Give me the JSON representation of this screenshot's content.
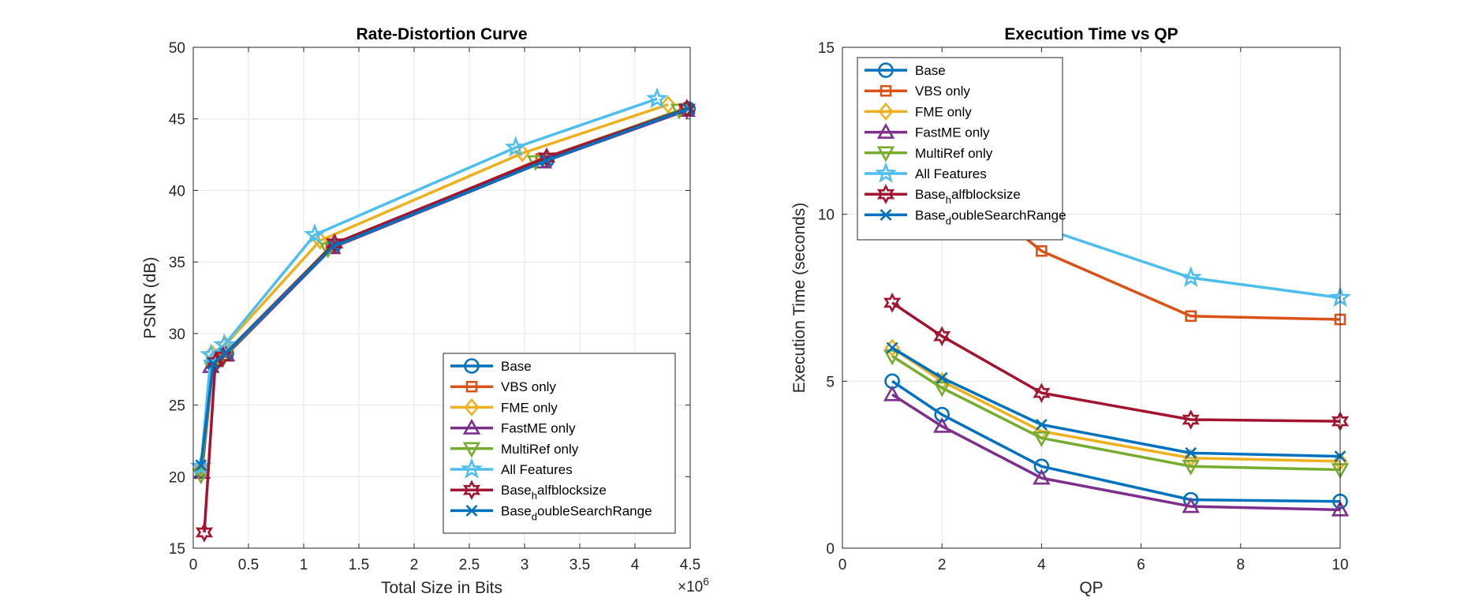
{
  "chart_data": [
    {
      "type": "line",
      "title": "Rate-Distortion Curve",
      "xlabel": "Total Size in Bits",
      "ylabel": "PSNR (dB)",
      "x_exponent_label": "×10",
      "x_exponent": "6",
      "x_scale": 1000000,
      "xlim": [
        0,
        4.5
      ],
      "ylim": [
        15,
        50
      ],
      "xticks": [
        0,
        0.5,
        1,
        1.5,
        2,
        2.5,
        3,
        3.5,
        4,
        4.5
      ],
      "xtick_labels": [
        "0",
        "0.5",
        "1",
        "1.5",
        "2",
        "2.5",
        "3",
        "3.5",
        "4",
        "4.5"
      ],
      "yticks": [
        15,
        20,
        25,
        30,
        35,
        40,
        45,
        50
      ],
      "ytick_labels": [
        "15",
        "20",
        "25",
        "30",
        "35",
        "40",
        "45",
        "50"
      ],
      "grid": true,
      "legend_position": "bottom-right",
      "series": [
        {
          "name": "Base",
          "marker": "circle",
          "color": "#0072BD",
          "x": [
            0.08,
            0.18,
            0.3,
            1.27,
            3.2,
            4.48
          ],
          "y": [
            20.5,
            27.9,
            28.6,
            36.1,
            42.1,
            45.7
          ]
        },
        {
          "name": "VBS only",
          "marker": "square",
          "color": "#D95319",
          "x": [
            0.08,
            0.18,
            0.3,
            1.25,
            3.15,
            4.45
          ],
          "y": [
            20.5,
            28.0,
            28.7,
            36.1,
            42.2,
            45.7
          ]
        },
        {
          "name": "FME only",
          "marker": "diamond",
          "color": "#EDB120",
          "x": [
            0.07,
            0.17,
            0.29,
            1.15,
            2.98,
            4.3
          ],
          "y": [
            20.6,
            28.6,
            29.2,
            36.5,
            42.6,
            46.0
          ]
        },
        {
          "name": "FastME only",
          "marker": "triangle-up",
          "color": "#7E2F8E",
          "x": [
            0.08,
            0.16,
            0.3,
            1.26,
            3.17,
            4.47
          ],
          "y": [
            20.3,
            27.7,
            28.5,
            36.0,
            42.0,
            45.6
          ]
        },
        {
          "name": "MultiRef only",
          "marker": "triangle-down",
          "color": "#77AC30",
          "x": [
            0.07,
            0.17,
            0.28,
            1.22,
            3.1,
            4.4
          ],
          "y": [
            20.1,
            27.7,
            28.4,
            35.9,
            42.0,
            45.6
          ]
        },
        {
          "name": "All Features",
          "marker": "pentagram",
          "color": "#4DBEEE",
          "x": [
            0.07,
            0.16,
            0.28,
            1.1,
            2.92,
            4.2
          ],
          "y": [
            20.7,
            28.5,
            29.2,
            36.9,
            43.0,
            46.4
          ]
        },
        {
          "name": "Base_halfblocksize",
          "legend_main": "Base",
          "legend_sub": "h",
          "legend_rest": "alfblocksize",
          "marker": "hexagram",
          "color": "#A2142F",
          "x": [
            0.1,
            0.2,
            0.27,
            1.28,
            3.2,
            4.47
          ],
          "y": [
            16.1,
            28.0,
            28.4,
            36.3,
            42.3,
            45.7
          ]
        },
        {
          "name": "Base_doubleSearchRange",
          "legend_main": "Base",
          "legend_sub": "d",
          "legend_rest": "oubleSearchRange",
          "marker": "x",
          "color": "#0072BD",
          "x": [
            0.07,
            0.18,
            0.29,
            1.27,
            3.2,
            4.48
          ],
          "y": [
            20.8,
            27.9,
            28.6,
            36.1,
            42.1,
            45.7
          ]
        }
      ]
    },
    {
      "type": "line",
      "title": "Execution Time vs QP",
      "xlabel": "QP",
      "ylabel": "Execution Time (seconds)",
      "xlim": [
        0,
        10
      ],
      "ylim": [
        0,
        15
      ],
      "xticks": [
        0,
        2,
        4,
        6,
        8,
        10
      ],
      "xtick_labels": [
        "0",
        "2",
        "4",
        "6",
        "8",
        "10"
      ],
      "yticks": [
        0,
        5,
        10,
        15
      ],
      "ytick_labels": [
        "0",
        "5",
        "10",
        "15"
      ],
      "grid": true,
      "legend_position": "top-left",
      "series": [
        {
          "name": "Base",
          "marker": "circle",
          "color": "#0072BD",
          "x": [
            1,
            2,
            4,
            7,
            10
          ],
          "y": [
            5.0,
            4.0,
            2.45,
            1.45,
            1.4
          ]
        },
        {
          "name": "VBS only",
          "marker": "square",
          "color": "#D95319",
          "x": [
            1,
            2,
            4,
            7,
            10
          ],
          "y": [
            12.7,
            11.3,
            8.9,
            6.95,
            6.85
          ]
        },
        {
          "name": "FME only",
          "marker": "diamond",
          "color": "#EDB120",
          "x": [
            1,
            2,
            4,
            7,
            10
          ],
          "y": [
            6.0,
            5.0,
            3.5,
            2.7,
            2.6
          ]
        },
        {
          "name": "FastME only",
          "marker": "triangle-up",
          "color": "#7E2F8E",
          "x": [
            1,
            2,
            4,
            7,
            10
          ],
          "y": [
            4.6,
            3.65,
            2.1,
            1.25,
            1.15
          ]
        },
        {
          "name": "MultiRef only",
          "marker": "triangle-down",
          "color": "#77AC30",
          "x": [
            1,
            2,
            4,
            7,
            10
          ],
          "y": [
            5.75,
            4.8,
            3.3,
            2.45,
            2.35
          ]
        },
        {
          "name": "All Features",
          "marker": "pentagram",
          "color": "#4DBEEE",
          "x": [
            1,
            2,
            4,
            7,
            10
          ],
          "y": [
            13.4,
            12.2,
            9.6,
            8.1,
            7.5
          ]
        },
        {
          "name": "Base_halfblocksize",
          "legend_main": "Base",
          "legend_sub": "h",
          "legend_rest": "alfblocksize",
          "marker": "hexagram",
          "color": "#A2142F",
          "x": [
            1,
            2,
            4,
            7,
            10
          ],
          "y": [
            7.35,
            6.35,
            4.65,
            3.85,
            3.8
          ]
        },
        {
          "name": "Base_doubleSearchRange",
          "legend_main": "Base",
          "legend_sub": "d",
          "legend_rest": "oubleSearchRange",
          "marker": "x",
          "color": "#0072BD",
          "x": [
            1,
            2,
            4,
            7,
            10
          ],
          "y": [
            6.0,
            5.1,
            3.7,
            2.85,
            2.75
          ]
        }
      ]
    }
  ]
}
